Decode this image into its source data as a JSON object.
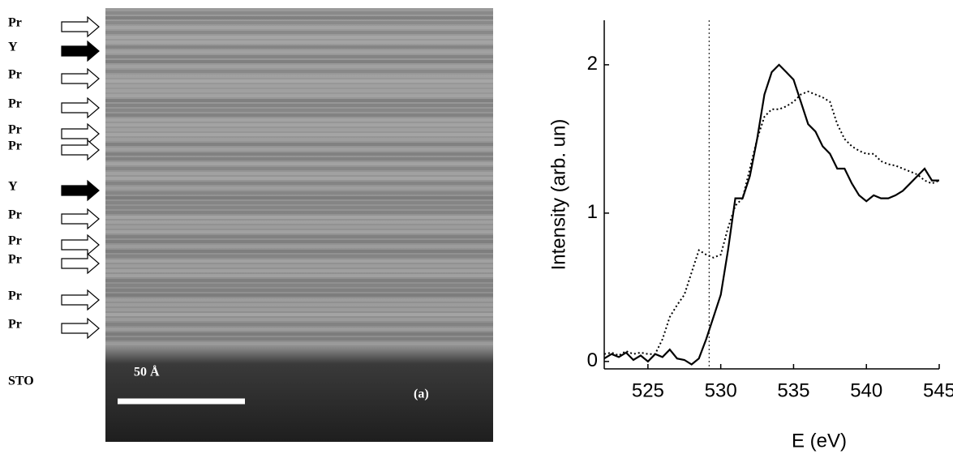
{
  "image_panel": {
    "layers": [
      {
        "label": "Pr",
        "filled": false
      },
      {
        "label": "Y",
        "filled": true
      },
      {
        "label": "Pr",
        "filled": false
      },
      {
        "label": "Pr",
        "filled": false
      },
      {
        "label": "Pr",
        "filled": false
      },
      {
        "label": "Pr",
        "filled": false
      },
      {
        "label": "Y",
        "filled": true
      },
      {
        "label": "Pr",
        "filled": false
      },
      {
        "label": "Pr",
        "filled": false
      },
      {
        "label": "Pr",
        "filled": false
      },
      {
        "label": "Pr",
        "filled": false
      },
      {
        "label": "Pr",
        "filled": false
      }
    ],
    "substrate_label": "STO",
    "scale_bar_label": "50 Å",
    "panel_label": "(a)"
  },
  "chart_data": {
    "type": "line",
    "x_label": "E (eV)",
    "y_label": "Intensity (arb. un)",
    "x": [
      522,
      522.5,
      523,
      523.5,
      524,
      524.5,
      525,
      525.5,
      526,
      526.5,
      527,
      527.5,
      528,
      528.5,
      529,
      529.5,
      530,
      530.5,
      531,
      531.5,
      532,
      532.5,
      533,
      533.5,
      534,
      534.5,
      535,
      535.5,
      536,
      536.5,
      537,
      537.5,
      538,
      538.5,
      539,
      539.5,
      540,
      540.5,
      541,
      541.5,
      542,
      542.5,
      543,
      543.5,
      544,
      544.5,
      545
    ],
    "series": [
      {
        "color": "#000000",
        "dash": "solid",
        "values": [
          0.02,
          0.05,
          0.03,
          0.06,
          0.01,
          0.04,
          0.0,
          0.05,
          0.03,
          0.08,
          0.02,
          0.01,
          -0.02,
          0.02,
          0.15,
          0.3,
          0.45,
          0.75,
          1.1,
          1.1,
          1.25,
          1.5,
          1.8,
          1.95,
          2.0,
          1.95,
          1.9,
          1.75,
          1.6,
          1.55,
          1.45,
          1.4,
          1.3,
          1.3,
          1.2,
          1.12,
          1.08,
          1.12,
          1.1,
          1.1,
          1.12,
          1.15,
          1.2,
          1.25,
          1.3,
          1.22,
          1.22
        ]
      },
      {
        "color": "#000000",
        "dash": "dotted",
        "values": [
          0.05,
          0.06,
          0.04,
          0.07,
          0.05,
          0.06,
          0.05,
          0.05,
          0.15,
          0.3,
          0.38,
          0.45,
          0.6,
          0.75,
          0.72,
          0.7,
          0.72,
          0.9,
          1.05,
          1.1,
          1.3,
          1.5,
          1.65,
          1.7,
          1.7,
          1.72,
          1.75,
          1.8,
          1.82,
          1.8,
          1.78,
          1.75,
          1.6,
          1.5,
          1.45,
          1.42,
          1.4,
          1.4,
          1.35,
          1.33,
          1.32,
          1.3,
          1.28,
          1.26,
          1.22,
          1.2,
          1.22
        ]
      }
    ],
    "vline": 529.2,
    "xlim": [
      522,
      545
    ],
    "ylim": [
      -0.05,
      2.3
    ],
    "xticks": [
      525,
      530,
      535,
      540,
      545
    ],
    "yticks": [
      0,
      1,
      2
    ]
  }
}
